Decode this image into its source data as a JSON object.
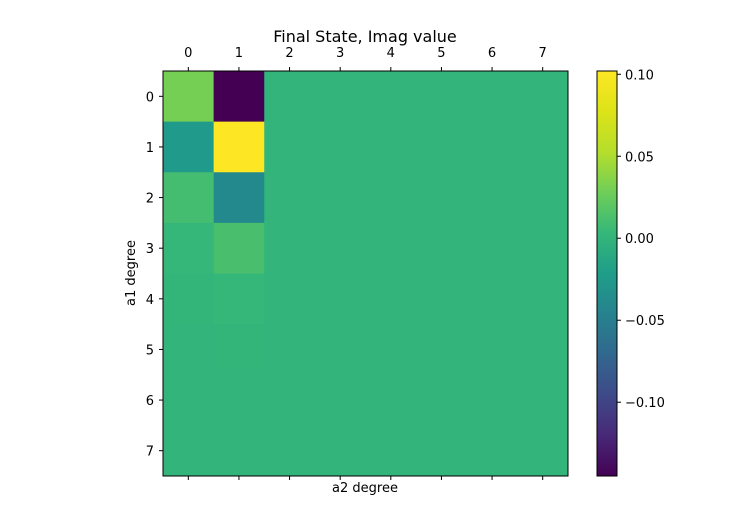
{
  "chart_data": {
    "type": "heatmap",
    "title": "Final State, Imag value",
    "xlabel": "a2 degree",
    "ylabel": "a1 degree",
    "x_ticks": [
      "0",
      "1",
      "2",
      "3",
      "4",
      "5",
      "6",
      "7"
    ],
    "y_ticks": [
      "0",
      "1",
      "2",
      "3",
      "4",
      "5",
      "6",
      "7"
    ],
    "x_axis_position": "top",
    "colormap": "viridis",
    "vmin": -0.145,
    "vmax": 0.102,
    "colorbar": {
      "ticks": [
        0.1,
        0.05,
        0.0,
        -0.05,
        -0.1
      ],
      "tick_labels": [
        "0.10",
        "0.05",
        "0.00",
        "−0.05",
        "−0.10"
      ]
    },
    "grid": false,
    "values": [
      [
        0.03,
        -0.145,
        0,
        0,
        0,
        0,
        0,
        0
      ],
      [
        -0.025,
        0.102,
        0,
        0,
        0,
        0,
        0,
        0
      ],
      [
        0.01,
        -0.04,
        0,
        0,
        0,
        0,
        0,
        0
      ],
      [
        0.003,
        0.012,
        0,
        0,
        0,
        0,
        0,
        0
      ],
      [
        0.001,
        0.003,
        0,
        0,
        0,
        0,
        0,
        0
      ],
      [
        0.0005,
        0.001,
        0,
        0,
        0,
        0,
        0,
        0
      ],
      [
        0,
        0,
        0,
        0,
        0,
        0,
        0,
        0
      ],
      [
        0,
        0,
        0,
        0,
        0,
        0,
        0,
        0
      ]
    ]
  }
}
